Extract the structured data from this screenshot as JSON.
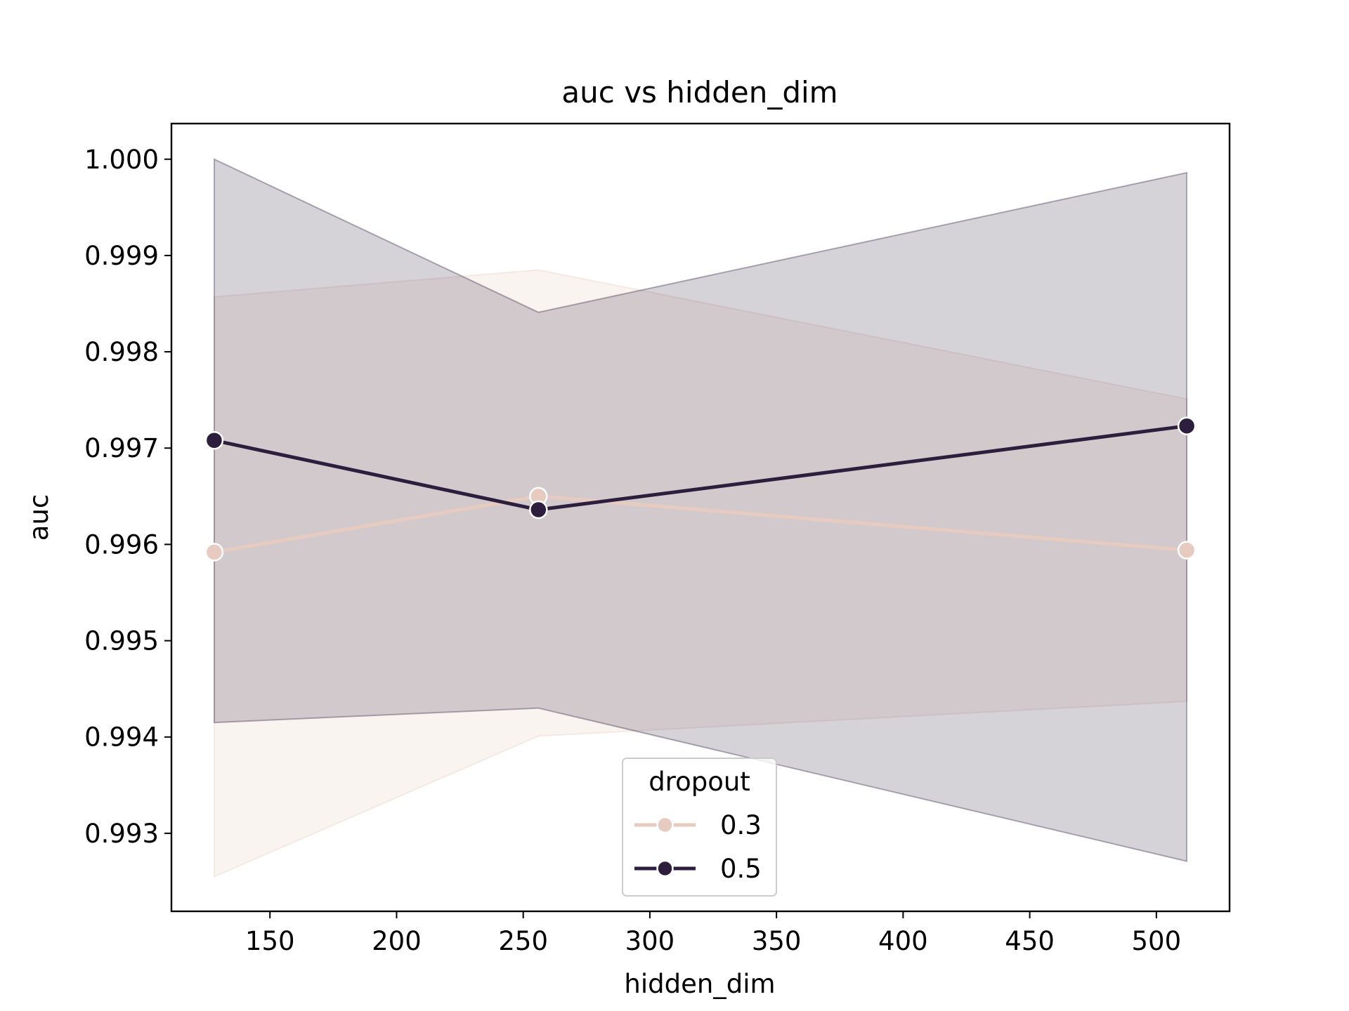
{
  "chart_data": {
    "type": "line",
    "title": "auc vs hidden_dim",
    "xlabel": "hidden_dim",
    "ylabel": "auc",
    "xlim": [
      111.1,
      528.9
    ],
    "ylim": [
      0.99219,
      1.00037
    ],
    "x_ticks": [
      150,
      200,
      250,
      300,
      350,
      400,
      450,
      500
    ],
    "y_ticks": [
      0.993,
      0.994,
      0.995,
      0.996,
      0.997,
      0.998,
      0.999,
      1.0
    ],
    "x_tick_labels": [
      "150",
      "200",
      "250",
      "300",
      "350",
      "400",
      "450",
      "500"
    ],
    "y_tick_labels": [
      "0.993",
      "0.994",
      "0.995",
      "0.996",
      "0.997",
      "0.998",
      "0.999",
      "1.000"
    ],
    "x": [
      128,
      256,
      512
    ],
    "grid": false,
    "legend": {
      "title": "dropout",
      "placement": "lower center"
    },
    "series": [
      {
        "name": "0.3",
        "color": "#e8cbc0",
        "values": [
          0.99592,
          0.9965,
          0.99594
        ],
        "ci_lower": [
          0.99255,
          0.99401,
          0.99437
        ],
        "ci_upper": [
          0.99857,
          0.99885,
          0.99751
        ]
      },
      {
        "name": "0.5",
        "color": "#2d1e3e",
        "values": [
          0.99708,
          0.99636,
          0.99723
        ],
        "ci_lower": [
          0.99415,
          0.9943,
          0.99271
        ],
        "ci_upper": [
          1.0,
          0.99841,
          0.99986
        ]
      }
    ]
  }
}
